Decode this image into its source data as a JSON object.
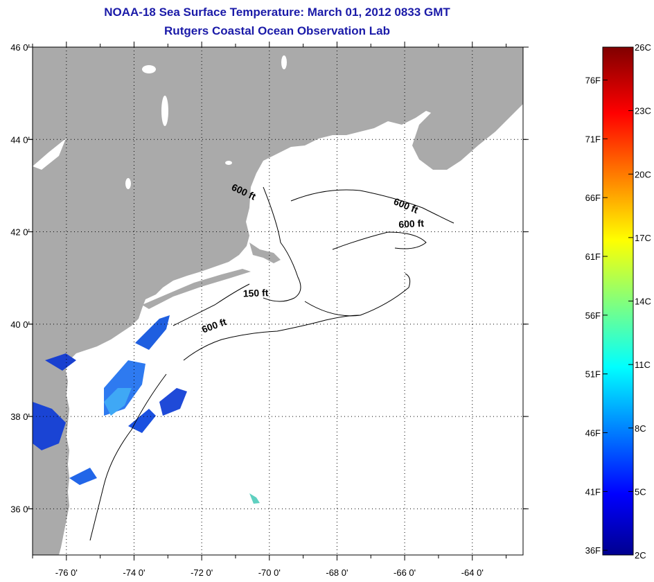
{
  "title": {
    "line1": "NOAA-18 Sea Surface Temperature:  March 01, 2012 0833 GMT",
    "line2": "Rutgers Coastal Ocean Observation Lab"
  },
  "map": {
    "lon_range": [
      -77,
      -62.5
    ],
    "lat_range": [
      35,
      46
    ],
    "land_color": "#aaaaaa",
    "ocean_color": "#ffffff",
    "lat_ticks": [
      {
        "value": 46,
        "label": "46 0'"
      },
      {
        "value": 44,
        "label": "44 0'"
      },
      {
        "value": 42,
        "label": "42 0'"
      },
      {
        "value": 40,
        "label": "40 0'"
      },
      {
        "value": 38,
        "label": "38 0'"
      },
      {
        "value": 36,
        "label": "36 0'"
      }
    ],
    "lon_ticks": [
      {
        "value": -76,
        "label": "-76 0'"
      },
      {
        "value": -74,
        "label": "-74 0'"
      },
      {
        "value": -72,
        "label": "-72 0'"
      },
      {
        "value": -70,
        "label": "-70 0'"
      },
      {
        "value": -68,
        "label": "-68 0'"
      },
      {
        "value": -66,
        "label": "-66 0'"
      },
      {
        "value": -64,
        "label": "-64 0'"
      }
    ],
    "contour_labels": [
      {
        "text": "600 ft",
        "lon": -70.8,
        "lat": 42.8,
        "rotate": 25
      },
      {
        "text": "600 ft",
        "lon": -66.0,
        "lat": 42.5,
        "rotate": 22
      },
      {
        "text": "600 ft",
        "lon": -65.8,
        "lat": 42.1,
        "rotate": -3
      },
      {
        "text": "150 ft",
        "lon": -70.4,
        "lat": 40.6,
        "rotate": -2
      },
      {
        "text": "600 ft",
        "lon": -71.6,
        "lat": 39.9,
        "rotate": -20
      }
    ]
  },
  "colorbar": {
    "min_c": 2,
    "max_c": 26,
    "celsius_labels": [
      "26C",
      "23C",
      "20C",
      "17C",
      "14C",
      "11C",
      "8C",
      "5C",
      "2C"
    ],
    "celsius_values": [
      26,
      23,
      20,
      17,
      14,
      11,
      8,
      5,
      2
    ],
    "fahrenheit_labels": [
      "76F",
      "71F",
      "66F",
      "61F",
      "56F",
      "51F",
      "46F",
      "41F",
      "36F"
    ],
    "fahrenheit_values": [
      76,
      71,
      66,
      61,
      56,
      51,
      46,
      41,
      36
    ]
  }
}
